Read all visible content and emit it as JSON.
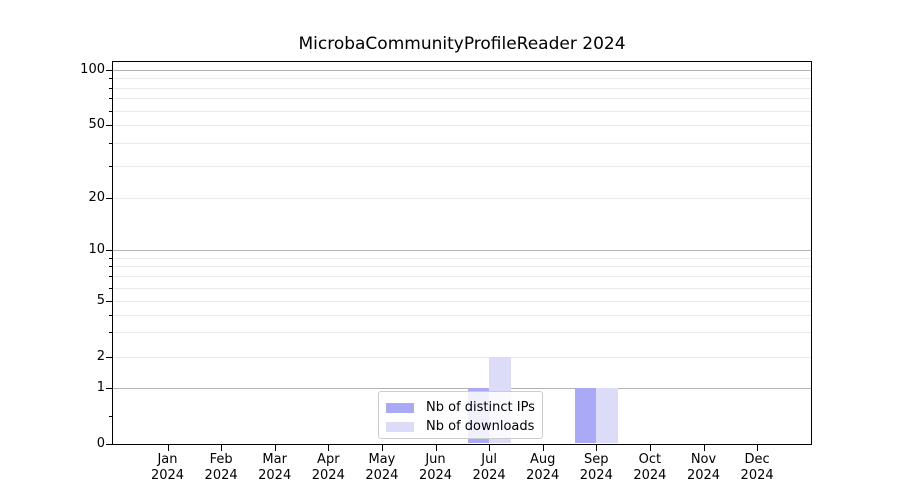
{
  "title": "MicrobaCommunityProfileReader 2024",
  "chart_data": {
    "type": "bar",
    "title": "MicrobaCommunityProfileReader 2024",
    "categories": [
      {
        "label": "Jan",
        "sublabel": "2024"
      },
      {
        "label": "Feb",
        "sublabel": "2024"
      },
      {
        "label": "Mar",
        "sublabel": "2024"
      },
      {
        "label": "Apr",
        "sublabel": "2024"
      },
      {
        "label": "May",
        "sublabel": "2024"
      },
      {
        "label": "Jun",
        "sublabel": "2024"
      },
      {
        "label": "Jul",
        "sublabel": "2024"
      },
      {
        "label": "Aug",
        "sublabel": "2024"
      },
      {
        "label": "Sep",
        "sublabel": "2024"
      },
      {
        "label": "Oct",
        "sublabel": "2024"
      },
      {
        "label": "Nov",
        "sublabel": "2024"
      },
      {
        "label": "Dec",
        "sublabel": "2024"
      }
    ],
    "series": [
      {
        "name": "Nb of distinct IPs",
        "color": "#a9a9f5",
        "values": [
          0,
          0,
          0,
          0,
          0,
          0,
          1,
          0,
          1,
          0,
          0,
          0
        ]
      },
      {
        "name": "Nb of downloads",
        "color": "#dcdcf9",
        "values": [
          0,
          0,
          0,
          0,
          0,
          0,
          2,
          0,
          1,
          0,
          0,
          0
        ]
      }
    ],
    "xlabel": "",
    "ylabel": "",
    "yticks": [
      0,
      1,
      2,
      5,
      10,
      20,
      50,
      100
    ],
    "yscale": "log-like with linear segment below 1",
    "ylim": [
      0,
      115
    ],
    "grid": true,
    "legend_position": "lower center",
    "colors": {
      "grid_major": "#b3b3b3",
      "grid_minor": "#e9e9e9",
      "axis": "#000000",
      "background": "#ffffff"
    }
  }
}
